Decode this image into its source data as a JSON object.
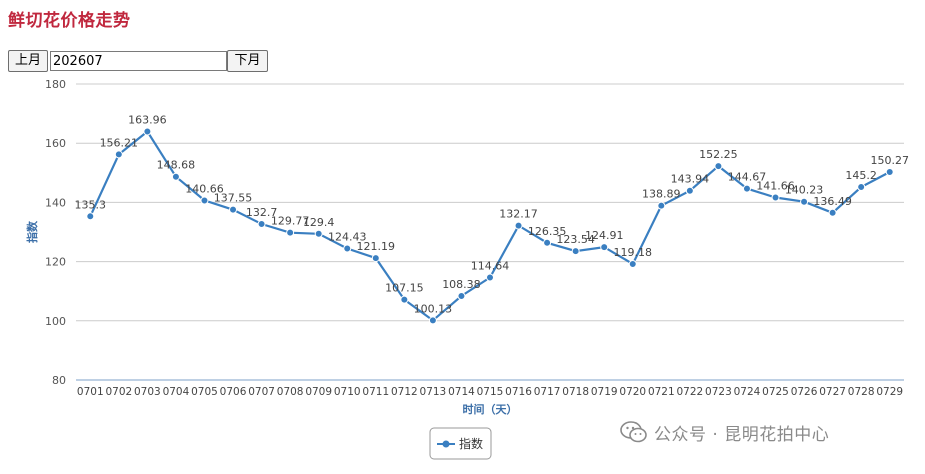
{
  "header": {
    "title": "鲜切花价格走势"
  },
  "nav": {
    "prev_label": "上月",
    "month_value": "202607",
    "next_label": "下月"
  },
  "watermark": {
    "text": "公众号 · 昆明花拍中心",
    "icon": "wechat-icon"
  },
  "colors": {
    "title": "#c0283e",
    "series": "#3a7fc1",
    "grid": "#cccccc",
    "axis_label": "#3c6fa8"
  },
  "chart_data": {
    "type": "line",
    "title": "",
    "xlabel": "时间（天）",
    "ylabel": "指数",
    "ylim": [
      80,
      180
    ],
    "yticks": [
      80,
      100,
      120,
      140,
      160,
      180
    ],
    "grid": true,
    "legend_position": "bottom-center",
    "categories": [
      "0701",
      "0702",
      "0703",
      "0704",
      "0705",
      "0706",
      "0707",
      "0708",
      "0709",
      "0710",
      "0711",
      "0712",
      "0713",
      "0714",
      "0715",
      "0716",
      "0717",
      "0718",
      "0719",
      "0720",
      "0721",
      "0722",
      "0723",
      "0724",
      "0725",
      "0726",
      "0727",
      "0728",
      "0729"
    ],
    "series": [
      {
        "name": "指数",
        "values": [
          135.3,
          156.21,
          163.96,
          148.68,
          140.66,
          137.55,
          132.7,
          129.77,
          129.4,
          124.43,
          121.19,
          107.15,
          100.13,
          108.38,
          114.64,
          132.17,
          126.35,
          123.54,
          124.91,
          119.18,
          138.89,
          143.94,
          152.25,
          144.67,
          141.66,
          140.23,
          136.49,
          145.2,
          150.27
        ],
        "labels": [
          "135.3",
          "156.21",
          "163.96",
          "148.68",
          "140.66",
          "137.55",
          "132.7",
          "129.77",
          "129.4",
          "124.43",
          "121.19",
          "107.15",
          "100.13",
          "108.38",
          "114.64",
          "132.17",
          "126.35",
          "123.54",
          "124.91",
          "119.18",
          "138.89",
          "143.94",
          "152.25",
          "144.67",
          "141.66",
          "140.23",
          "136.49",
          "145.2",
          "150.27"
        ]
      }
    ]
  }
}
